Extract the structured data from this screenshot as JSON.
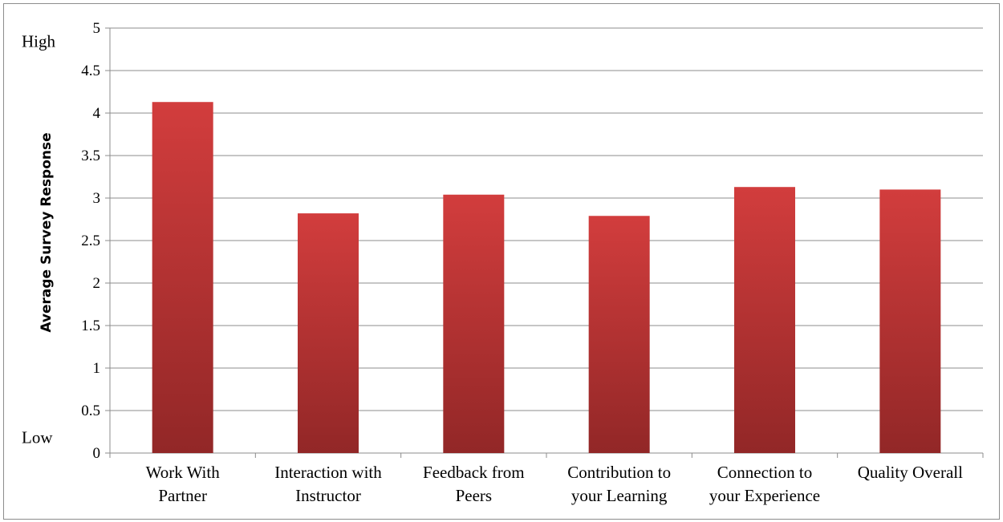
{
  "chart_data": {
    "type": "bar",
    "categories": [
      [
        "Work With",
        "Partner"
      ],
      [
        "Interaction with",
        "Instructor"
      ],
      [
        "Feedback from",
        "Peers"
      ],
      [
        "Contribution to",
        "your Learning"
      ],
      [
        "Connection to",
        "your Experience"
      ],
      [
        "Quality Overall"
      ]
    ],
    "values": [
      4.13,
      2.82,
      3.04,
      2.79,
      3.13,
      3.1
    ],
    "title": "",
    "xlabel": "",
    "ylabel": "Average Survey Response",
    "ylim": [
      0,
      5
    ],
    "yticks": [
      0,
      0.5,
      1,
      1.5,
      2,
      2.5,
      3,
      3.5,
      4,
      4.5,
      5
    ],
    "ytick_labels": [
      "0",
      "0.5",
      "1",
      "1.5",
      "2",
      "2.5",
      "3",
      "3.5",
      "4",
      "4.5",
      "5"
    ],
    "y_end_labels": {
      "high": "High",
      "low": "Low"
    },
    "grid": true,
    "legend": "none",
    "colors": {
      "bar_light": "#d23d3d",
      "bar_dark": "#922727",
      "grid": "#8c8c8c",
      "axis": "#8c8c8c"
    }
  }
}
